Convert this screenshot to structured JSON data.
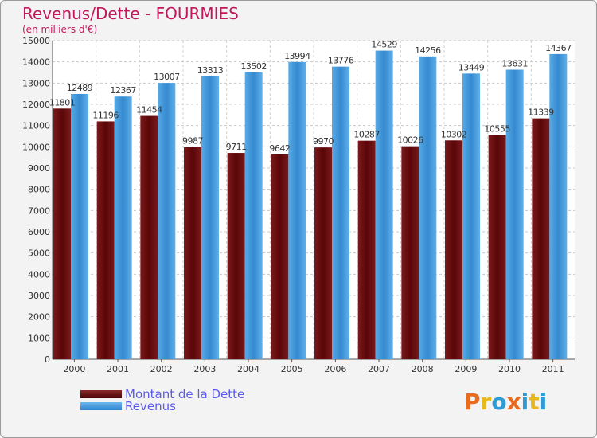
{
  "title": "Revenus/Dette - FOURMIES",
  "subtitle": "(en milliers d'€)",
  "logo": {
    "text": "Proxiti",
    "colors": [
      "#e96b1f",
      "#e8b81f",
      "#2e9bd6",
      "#e96b1f",
      "#2e9bd6",
      "#e8b81f",
      "#2e9bd6"
    ]
  },
  "colors": {
    "dette": "#6b0f12",
    "revenus": "#3d96d9"
  },
  "chart_data": {
    "type": "bar",
    "title": "Revenus/Dette - FOURMIES",
    "subtitle": "(en milliers d'€)",
    "categories": [
      "2000",
      "2001",
      "2002",
      "2003",
      "2004",
      "2005",
      "2006",
      "2007",
      "2008",
      "2009",
      "2010",
      "2011"
    ],
    "series": [
      {
        "name": "Montant de la Dette",
        "values": [
          11801,
          11196,
          11454,
          9987,
          9711,
          9642,
          9970,
          10287,
          10026,
          10302,
          10555,
          11339
        ],
        "labels": [
          "11801",
          "11196",
          "11454",
          "9987",
          "9711",
          "9642",
          "9970",
          "10287",
          "10026",
          "10302",
          "10555",
          "11339"
        ]
      },
      {
        "name": "Revenus",
        "values": [
          12489,
          12367,
          13007,
          13313,
          13502,
          13994,
          13776,
          14529,
          14256,
          13449,
          13631,
          14367
        ],
        "labels": [
          "12489",
          "12367",
          "13007",
          "13313",
          "13502",
          "13994",
          "13776",
          "14529",
          "14256",
          "13449",
          "13631",
          "14367"
        ]
      }
    ],
    "ylim": [
      0,
      15000
    ],
    "yticks": [
      0,
      1000,
      2000,
      3000,
      4000,
      5000,
      6000,
      7000,
      8000,
      9000,
      10000,
      11000,
      12000,
      13000,
      14000,
      15000
    ],
    "grid": true,
    "legend_position": "bottom-left"
  }
}
